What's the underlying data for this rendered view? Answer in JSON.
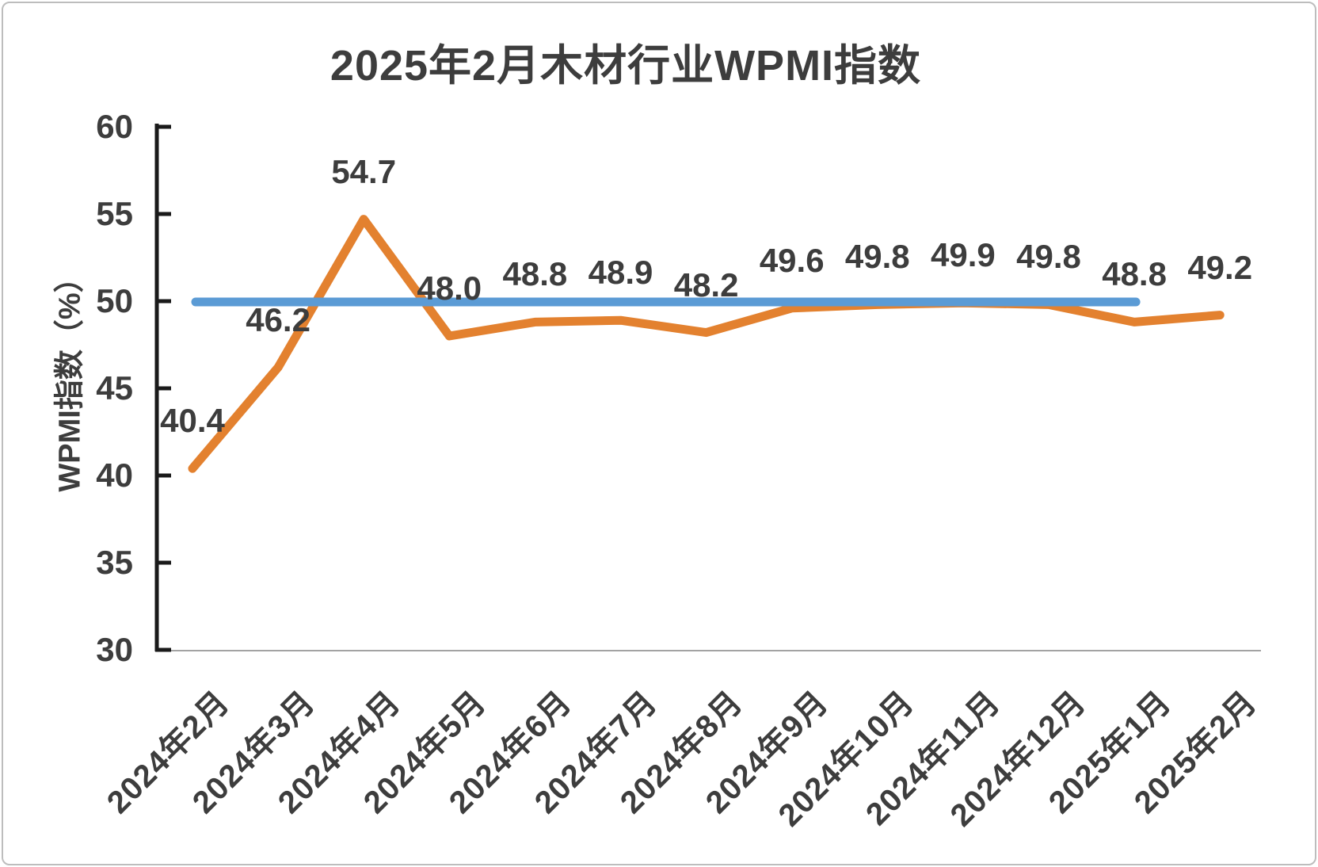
{
  "chart_data": {
    "type": "line",
    "title": "2025年2月木材行业WPMI指数",
    "ylabel": "WPMI指数（%）",
    "xlabel": "",
    "categories": [
      "2024年2月",
      "2024年3月",
      "2024年4月",
      "2024年5月",
      "2024年6月",
      "2024年7月",
      "2024年8月",
      "2024年9月",
      "2024年10月",
      "2024年11月",
      "2024年12月",
      "2025年1月",
      "2025年2月"
    ],
    "series": [
      {
        "name": "WPMI",
        "color": "#E3812F",
        "values": [
          40.4,
          46.2,
          54.7,
          48.0,
          48.8,
          48.9,
          48.2,
          49.6,
          49.8,
          49.9,
          49.8,
          48.8,
          49.2
        ],
        "data_labels": [
          "40.4",
          "46.2",
          "54.7",
          "48.0",
          "48.8",
          "48.9",
          "48.2",
          "49.6",
          "49.8",
          "49.9",
          "49.8",
          "48.8",
          "49.2"
        ]
      }
    ],
    "threshold_line": {
      "value": 50,
      "color": "#5B9BD5",
      "from_category_index": 0,
      "to_category_index": 11
    },
    "ylim": [
      30,
      60
    ],
    "yticks": [
      30,
      35,
      40,
      45,
      50,
      55,
      60
    ],
    "grid": false,
    "legend": "none",
    "colors": {
      "series_line": "#E3812F",
      "threshold_line": "#5B9BD5",
      "text": "#3D3D3D",
      "axis": "#1A1A1A",
      "baseline": "#A3A3A3",
      "frame_border": "#BDBDBD",
      "background": "#FFFFFF"
    }
  }
}
